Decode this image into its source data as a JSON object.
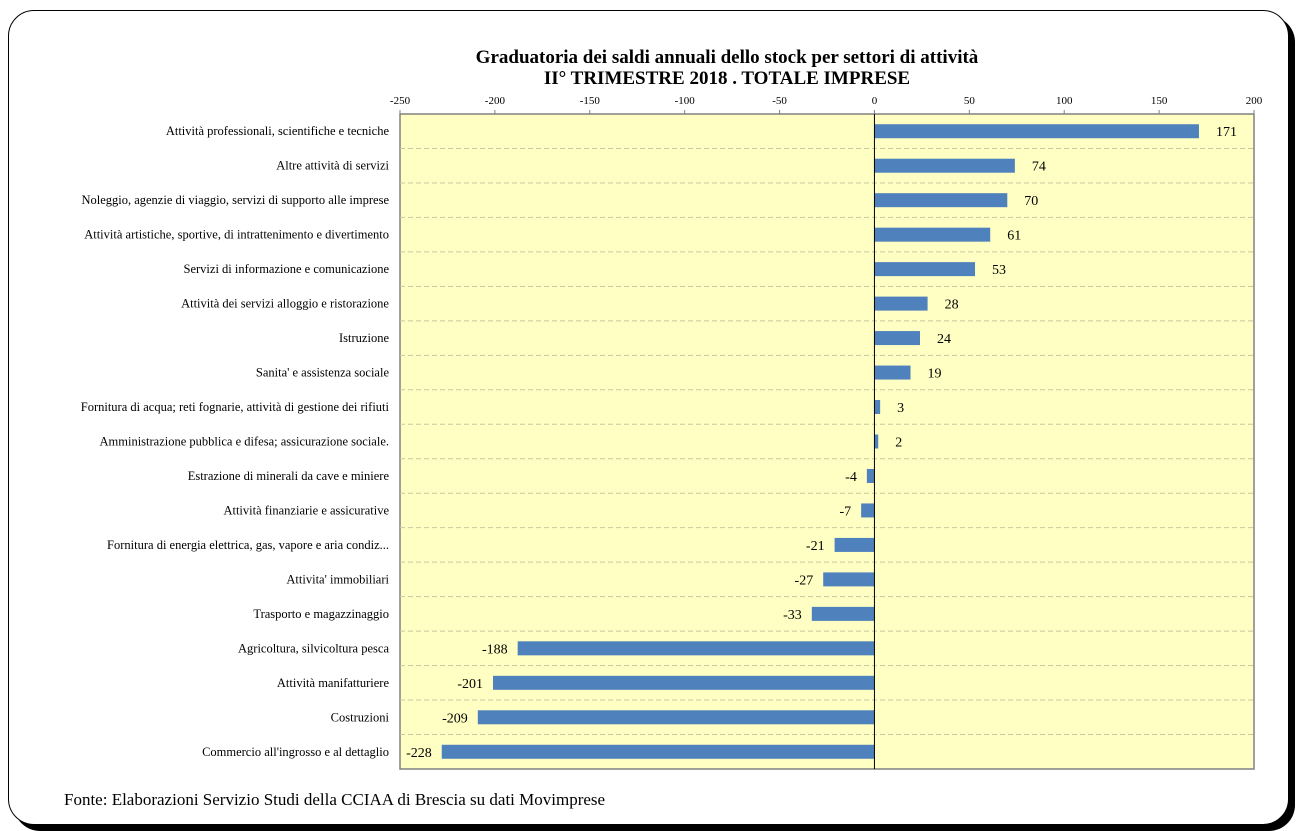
{
  "chart_data": {
    "type": "bar",
    "orientation": "horizontal",
    "title": "Graduatoria dei saldi annuali dello stock per settori di attività",
    "subtitle": "II° TRIMESTRE 2018 . TOTALE IMPRESE",
    "xlim": [
      -250,
      200
    ],
    "xticks": [
      -250,
      -200,
      -150,
      -100,
      -50,
      0,
      50,
      100,
      150,
      200
    ],
    "categories": [
      "Attività professionali, scientifiche e tecniche",
      "Altre attività di servizi",
      "Noleggio, agenzie di viaggio, servizi di supporto alle imprese",
      "Attività artistiche, sportive, di intrattenimento e divertimento",
      "Servizi di informazione e comunicazione",
      "Attività dei servizi alloggio e ristorazione",
      "Istruzione",
      "Sanita' e assistenza sociale",
      "Fornitura di acqua; reti fognarie, attività di gestione dei rifiuti",
      "Amministrazione pubblica e difesa; assicurazione sociale.",
      "Estrazione di minerali da cave e miniere",
      "Attività finanziarie e assicurative",
      "Fornitura di energia elettrica, gas, vapore e aria condiz...",
      "Attivita' immobiliari",
      "Trasporto e magazzinaggio",
      "Agricoltura, silvicoltura pesca",
      "Attività manifatturiere",
      "Costruzioni",
      "Commercio all'ingrosso e al dettaglio"
    ],
    "values": [
      171,
      74,
      70,
      61,
      53,
      28,
      24,
      19,
      3,
      2,
      -4,
      -7,
      -21,
      -27,
      -33,
      -188,
      -201,
      -209,
      -228
    ],
    "bar_color": "#4f81bd",
    "plot_background": "#ffffc4",
    "grid": "horizontal dashed"
  },
  "footer": {
    "source": "Fonte: Elaborazioni Servizio Studi della CCIAA di Brescia su dati Movimprese"
  }
}
